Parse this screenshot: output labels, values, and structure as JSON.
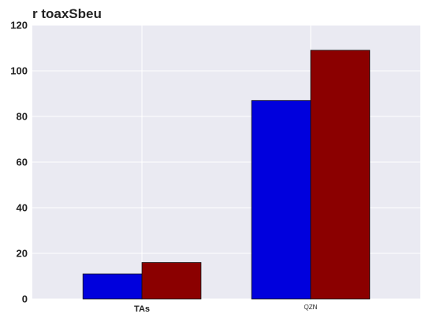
{
  "chart_data": {
    "type": "bar",
    "title": "r toaxSbeu",
    "xlabel": "",
    "ylabel": "",
    "categories": [
      "TAs",
      "QZN"
    ],
    "series": [
      {
        "values": [
          11,
          87
        ],
        "color": "#0000dd"
      },
      {
        "values": [
          16,
          109
        ],
        "color": "#8b0000"
      }
    ],
    "ylim": [
      0,
      120
    ],
    "yticks": [
      0,
      20,
      40,
      60,
      80,
      100,
      120
    ],
    "grid": true,
    "background_color": "#eaeaf2",
    "grid_color": "#ffffff"
  }
}
